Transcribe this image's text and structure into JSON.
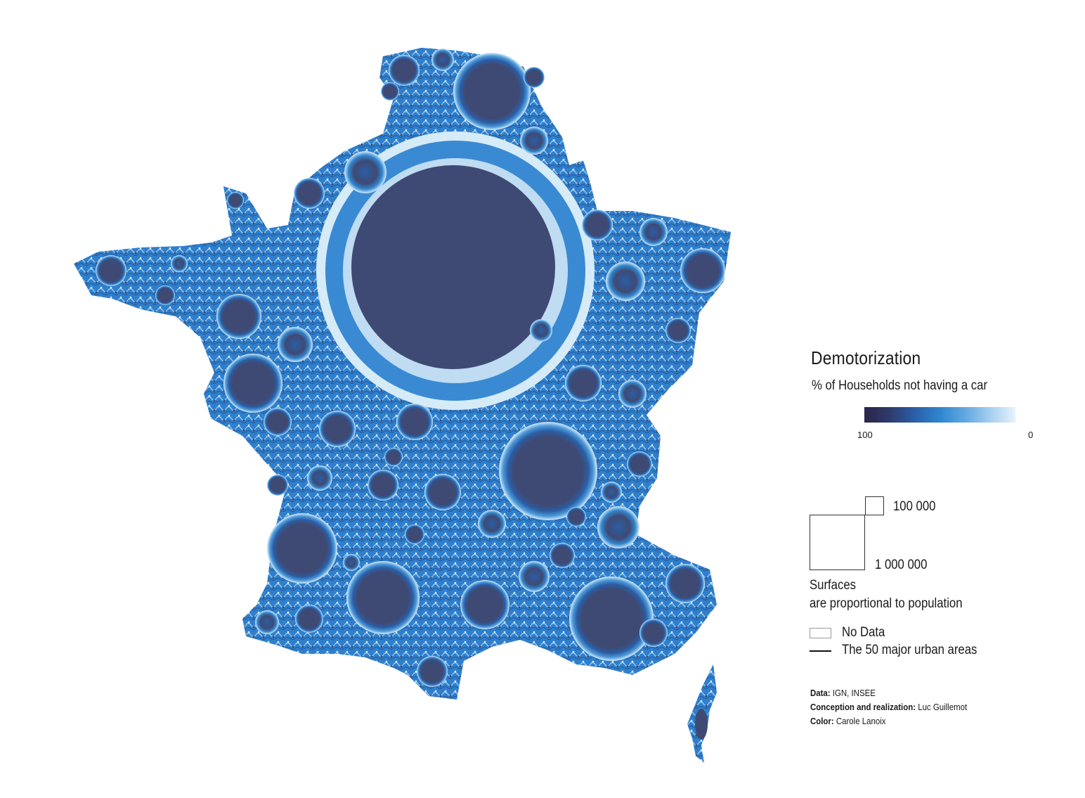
{
  "legend": {
    "title": "Demotorization",
    "subtitle": "% of Households not having a car",
    "ramp_max_label": "100",
    "ramp_min_label": "0",
    "ramp_colors": [
      "#2b2548",
      "#2f3a6c",
      "#2a5fa8",
      "#2e86cf",
      "#62a8e0",
      "#a6cff0",
      "#e6f3fc"
    ],
    "size_small_label": "100 000",
    "size_large_label": "1 000 000",
    "surfaces_line1": "Surfaces",
    "surfaces_line2": "are proportional to population",
    "no_data_label": "No Data",
    "urban_areas_label": "The 50 major urban areas"
  },
  "credits": {
    "data_key": "Data:",
    "data_value": "IGN, INSEE",
    "conception_key": "Conception and realization:",
    "conception_value": "Luc Guillemot",
    "color_key": "Color:",
    "color_value": "Carole Lanoix"
  },
  "map_palette": {
    "dark": "#3f4a74",
    "deep_blue": "#2a5ea6",
    "mid_blue": "#2f86cf",
    "light_blue": "#7fb9e6",
    "pale_blue": "#cde6f7"
  }
}
